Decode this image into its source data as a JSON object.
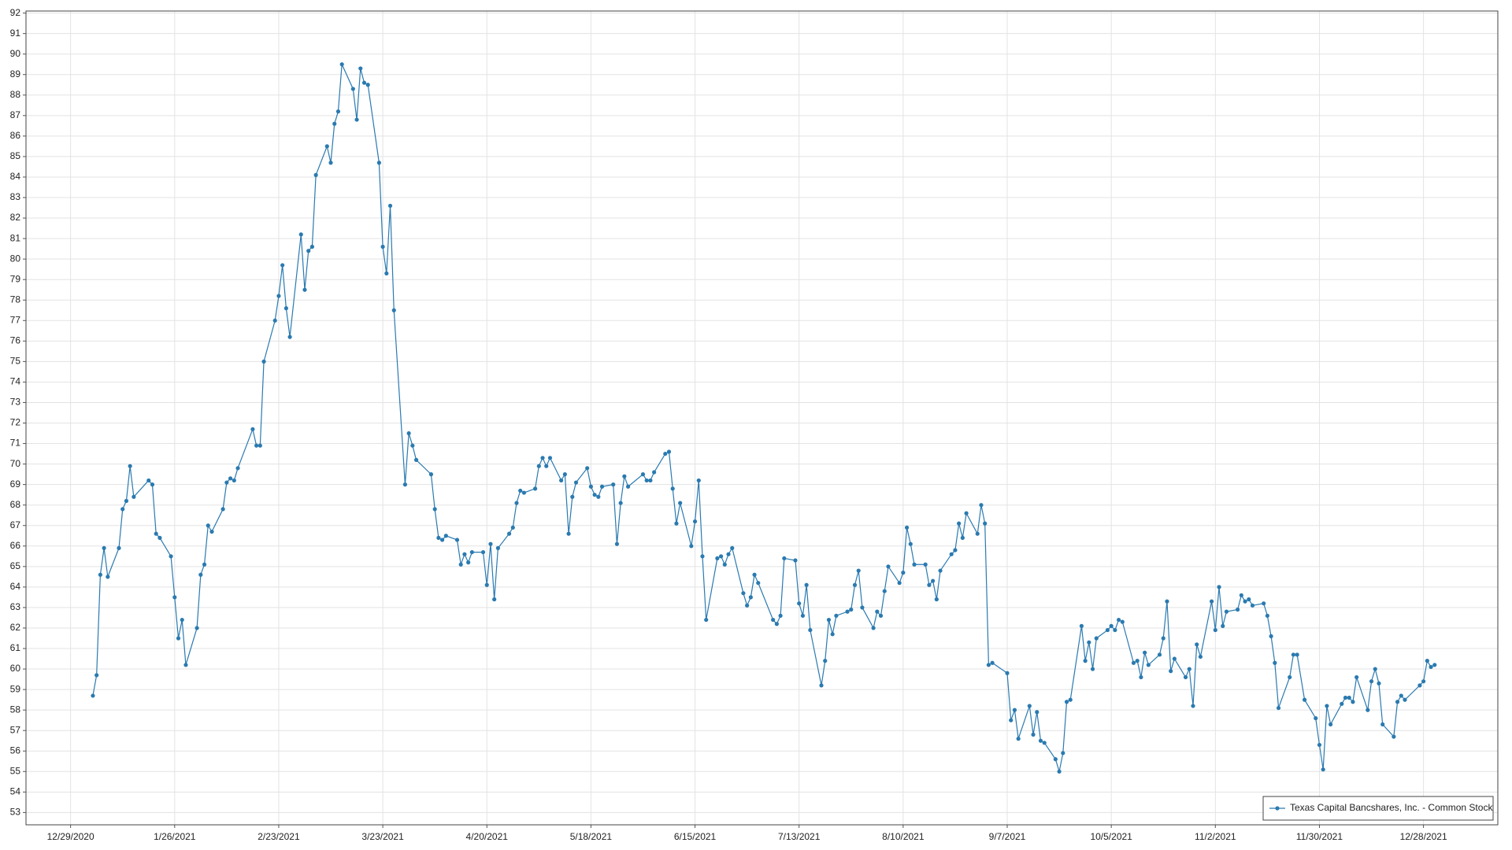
{
  "chart_data": {
    "type": "line",
    "x": [
      "1/4/2021",
      "1/5/2021",
      "1/6/2021",
      "1/7/2021",
      "1/8/2021",
      "1/11/2021",
      "1/12/2021",
      "1/13/2021",
      "1/14/2021",
      "1/15/2021",
      "1/19/2021",
      "1/20/2021",
      "1/21/2021",
      "1/22/2021",
      "1/25/2021",
      "1/26/2021",
      "1/27/2021",
      "1/28/2021",
      "1/29/2021",
      "2/1/2021",
      "2/2/2021",
      "2/3/2021",
      "2/4/2021",
      "2/5/2021",
      "2/8/2021",
      "2/9/2021",
      "2/10/2021",
      "2/11/2021",
      "2/12/2021",
      "2/16/2021",
      "2/17/2021",
      "2/18/2021",
      "2/19/2021",
      "2/22/2021",
      "2/23/2021",
      "2/24/2021",
      "2/25/2021",
      "2/26/2021",
      "3/1/2021",
      "3/2/2021",
      "3/3/2021",
      "3/4/2021",
      "3/5/2021",
      "3/8/2021",
      "3/9/2021",
      "3/10/2021",
      "3/11/2021",
      "3/12/2021",
      "3/15/2021",
      "3/16/2021",
      "3/17/2021",
      "3/18/2021",
      "3/19/2021",
      "3/22/2021",
      "3/23/2021",
      "3/24/2021",
      "3/25/2021",
      "3/26/2021",
      "3/29/2021",
      "3/30/2021",
      "3/31/2021",
      "4/1/2021",
      "4/5/2021",
      "4/6/2021",
      "4/7/2021",
      "4/8/2021",
      "4/9/2021",
      "4/12/2021",
      "4/13/2021",
      "4/14/2021",
      "4/15/2021",
      "4/16/2021",
      "4/19/2021",
      "4/20/2021",
      "4/21/2021",
      "4/22/2021",
      "4/23/2021",
      "4/26/2021",
      "4/27/2021",
      "4/28/2021",
      "4/29/2021",
      "4/30/2021",
      "5/3/2021",
      "5/4/2021",
      "5/5/2021",
      "5/6/2021",
      "5/7/2021",
      "5/10/2021",
      "5/11/2021",
      "5/12/2021",
      "5/13/2021",
      "5/14/2021",
      "5/17/2021",
      "5/18/2021",
      "5/19/2021",
      "5/20/2021",
      "5/21/2021",
      "5/24/2021",
      "5/25/2021",
      "5/26/2021",
      "5/27/2021",
      "5/28/2021",
      "6/1/2021",
      "6/2/2021",
      "6/3/2021",
      "6/4/2021",
      "6/7/2021",
      "6/8/2021",
      "6/9/2021",
      "6/10/2021",
      "6/11/2021",
      "6/14/2021",
      "6/15/2021",
      "6/16/2021",
      "6/17/2021",
      "6/18/2021",
      "6/21/2021",
      "6/22/2021",
      "6/23/2021",
      "6/24/2021",
      "6/25/2021",
      "6/28/2021",
      "6/29/2021",
      "6/30/2021",
      "7/1/2021",
      "7/2/2021",
      "7/6/2021",
      "7/7/2021",
      "7/8/2021",
      "7/9/2021",
      "7/12/2021",
      "7/13/2021",
      "7/14/2021",
      "7/15/2021",
      "7/16/2021",
      "7/19/2021",
      "7/20/2021",
      "7/21/2021",
      "7/22/2021",
      "7/23/2021",
      "7/26/2021",
      "7/27/2021",
      "7/28/2021",
      "7/29/2021",
      "7/30/2021",
      "8/2/2021",
      "8/3/2021",
      "8/4/2021",
      "8/5/2021",
      "8/6/2021",
      "8/9/2021",
      "8/10/2021",
      "8/11/2021",
      "8/12/2021",
      "8/13/2021",
      "8/16/2021",
      "8/17/2021",
      "8/18/2021",
      "8/19/2021",
      "8/20/2021",
      "8/23/2021",
      "8/24/2021",
      "8/25/2021",
      "8/26/2021",
      "8/27/2021",
      "8/30/2021",
      "8/31/2021",
      "9/1/2021",
      "9/2/2021",
      "9/3/2021",
      "9/7/2021",
      "9/8/2021",
      "9/9/2021",
      "9/10/2021",
      "9/13/2021",
      "9/14/2021",
      "9/15/2021",
      "9/16/2021",
      "9/17/2021",
      "9/20/2021",
      "9/21/2021",
      "9/22/2021",
      "9/23/2021",
      "9/24/2021",
      "9/27/2021",
      "9/28/2021",
      "9/29/2021",
      "9/30/2021",
      "10/1/2021",
      "10/4/2021",
      "10/5/2021",
      "10/6/2021",
      "10/7/2021",
      "10/8/2021",
      "10/11/2021",
      "10/12/2021",
      "10/13/2021",
      "10/14/2021",
      "10/15/2021",
      "10/18/2021",
      "10/19/2021",
      "10/20/2021",
      "10/21/2021",
      "10/22/2021",
      "10/25/2021",
      "10/26/2021",
      "10/27/2021",
      "10/28/2021",
      "10/29/2021",
      "11/1/2021",
      "11/2/2021",
      "11/3/2021",
      "11/4/2021",
      "11/5/2021",
      "11/8/2021",
      "11/9/2021",
      "11/10/2021",
      "11/11/2021",
      "11/12/2021",
      "11/15/2021",
      "11/16/2021",
      "11/17/2021",
      "11/18/2021",
      "11/19/2021",
      "11/22/2021",
      "11/23/2021",
      "11/24/2021",
      "11/26/2021",
      "11/29/2021",
      "11/30/2021",
      "12/1/2021",
      "12/2/2021",
      "12/3/2021",
      "12/6/2021",
      "12/7/2021",
      "12/8/2021",
      "12/9/2021",
      "12/10/2021",
      "12/13/2021",
      "12/14/2021",
      "12/15/2021",
      "12/16/2021",
      "12/17/2021",
      "12/20/2021",
      "12/21/2021",
      "12/22/2021",
      "12/23/2021",
      "12/27/2021",
      "12/28/2021",
      "12/29/2021",
      "12/30/2021",
      "12/31/2021"
    ],
    "series": [
      {
        "name": "Texas Capital Bancshares, Inc. - Common Stock",
        "color": "#2a7ab0",
        "values": [
          58.7,
          59.7,
          64.6,
          65.9,
          64.5,
          65.9,
          67.8,
          68.2,
          69.9,
          68.4,
          69.2,
          69.0,
          66.6,
          66.4,
          65.5,
          63.5,
          61.5,
          62.4,
          60.2,
          62.0,
          64.6,
          65.1,
          67.0,
          66.7,
          67.8,
          69.1,
          69.3,
          69.2,
          69.8,
          71.7,
          70.9,
          70.9,
          75.0,
          77.0,
          78.2,
          79.7,
          77.6,
          76.2,
          81.2,
          78.5,
          80.4,
          80.6,
          84.1,
          85.5,
          84.7,
          86.6,
          87.2,
          89.5,
          88.3,
          86.8,
          89.3,
          88.6,
          88.5,
          84.7,
          80.6,
          79.3,
          82.6,
          77.5,
          69.0,
          71.5,
          70.9,
          70.2,
          69.5,
          67.8,
          66.4,
          66.3,
          66.5,
          66.3,
          65.1,
          65.6,
          65.2,
          65.7,
          65.7,
          64.1,
          66.1,
          63.4,
          65.9,
          66.6,
          66.9,
          68.1,
          68.7,
          68.6,
          68.8,
          69.9,
          70.3,
          69.9,
          70.3,
          69.2,
          69.5,
          66.6,
          68.4,
          69.1,
          69.8,
          68.9,
          68.5,
          68.4,
          68.9,
          69.0,
          66.1,
          68.1,
          69.4,
          68.9,
          69.5,
          69.2,
          69.2,
          69.6,
          70.5,
          70.6,
          68.8,
          67.1,
          68.1,
          66.0,
          67.2,
          69.2,
          65.5,
          62.4,
          65.4,
          65.5,
          65.1,
          65.6,
          65.9,
          63.7,
          63.1,
          63.5,
          64.6,
          64.2,
          62.4,
          62.2,
          62.6,
          65.4,
          65.3,
          63.2,
          62.6,
          64.1,
          61.9,
          59.2,
          60.4,
          62.4,
          61.7,
          62.6,
          62.8,
          62.9,
          64.1,
          64.8,
          63.0,
          62.0,
          62.8,
          62.6,
          63.8,
          65.0,
          64.2,
          64.7,
          66.9,
          66.1,
          65.1,
          65.1,
          64.1,
          64.3,
          63.4,
          64.8,
          65.6,
          65.8,
          67.1,
          66.4,
          67.6,
          66.6,
          68.0,
          67.1,
          60.2,
          60.3,
          59.8,
          57.5,
          58.0,
          56.6,
          58.2,
          56.8,
          57.9,
          56.5,
          56.4,
          55.6,
          55.0,
          55.9,
          58.4,
          58.5,
          62.1,
          60.4,
          61.3,
          60.0,
          61.5,
          61.9,
          62.1,
          61.9,
          62.4,
          62.3,
          60.3,
          60.4,
          59.6,
          60.8,
          60.2,
          60.7,
          61.5,
          63.3,
          59.9,
          60.5,
          59.6,
          60.0,
          58.2,
          61.2,
          60.6,
          63.3,
          61.9,
          64.0,
          62.1,
          62.8,
          62.9,
          63.6,
          63.3,
          63.4,
          63.1,
          63.2,
          62.6,
          61.6,
          60.3,
          58.1,
          59.6,
          60.7,
          60.7,
          58.5,
          57.6,
          56.3,
          55.1,
          58.2,
          57.3,
          58.3,
          58.6,
          58.6,
          58.4,
          59.6,
          58.0,
          59.4,
          60.0,
          59.3,
          57.3,
          56.7,
          58.4,
          58.7,
          58.5,
          59.2,
          59.4,
          60.4,
          60.1,
          60.2
        ]
      }
    ],
    "xlim": [
      "12/17/2020",
      "1/17/2022"
    ],
    "xticks": [
      "12/29/2020",
      "1/26/2021",
      "2/23/2021",
      "3/23/2021",
      "4/20/2021",
      "5/18/2021",
      "6/15/2021",
      "7/13/2021",
      "8/10/2021",
      "9/7/2021",
      "10/5/2021",
      "11/2/2021",
      "11/30/2021",
      "12/28/2021"
    ],
    "ylim": [
      52.4,
      92.1
    ],
    "yticks": [
      53,
      54,
      55,
      56,
      57,
      58,
      59,
      60,
      61,
      62,
      63,
      64,
      65,
      66,
      67,
      68,
      69,
      70,
      71,
      72,
      73,
      74,
      75,
      76,
      77,
      78,
      79,
      80,
      81,
      82,
      83,
      84,
      85,
      86,
      87,
      88,
      89,
      90,
      91,
      92
    ],
    "grid": true,
    "markers": true,
    "legend": "lower right"
  }
}
